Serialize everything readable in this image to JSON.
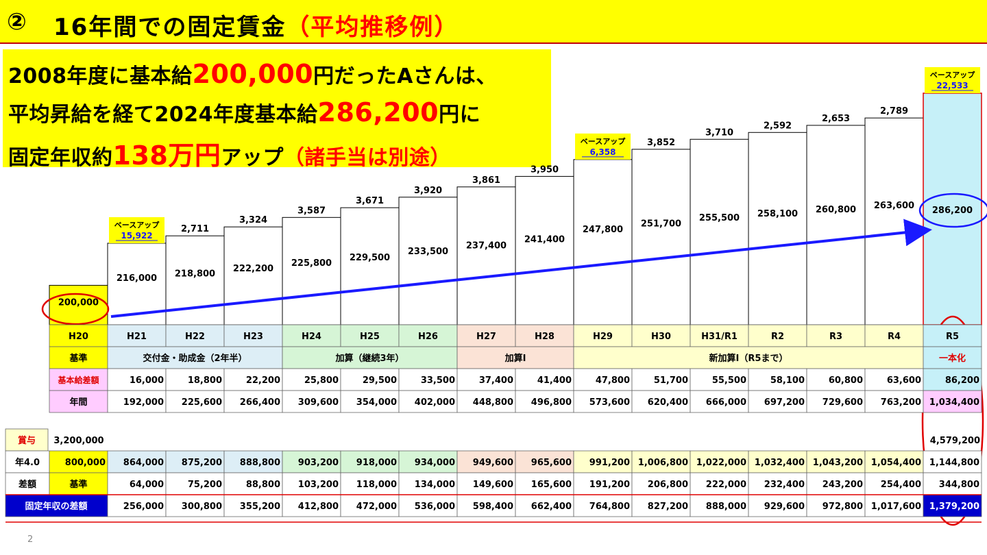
{
  "title": {
    "number": "②",
    "main": "16年間での固定賃金",
    "accent": "（平均推移例）"
  },
  "info": {
    "line1": {
      "a": "2008年度に基本給",
      "b": "200,000",
      "c": "円だったAさんは、"
    },
    "line2": {
      "a": "平均昇給を経て2024年度基本給",
      "b": "286,200",
      "c": "円に"
    },
    "line3": {
      "a": "固定年収約",
      "b": "138万円",
      "c": "アップ",
      "d": "（諸手当は別途）"
    }
  },
  "colors": {
    "title_bg": "#ffff00",
    "accent_red": "#ff0000",
    "arrow_blue": "#1a1aff",
    "highlight_dark_blue": "#0000cc",
    "period_colors": {
      "H20": "#ffff00",
      "H21-H23": "#ddeef6",
      "H24-H26": "#d6f5d6",
      "H27-H28": "#fbe3d6",
      "H29-R4": "#ffffcc",
      "R5": "#c6f0f8"
    }
  },
  "chart_data": {
    "type": "bar",
    "categories": [
      "H20",
      "H21",
      "H22",
      "H23",
      "H24",
      "H25",
      "H26",
      "H27",
      "H28",
      "H29",
      "H30",
      "H31/R1",
      "R2",
      "R3",
      "R4",
      "R5"
    ],
    "values": [
      200000,
      216000,
      218800,
      222200,
      225800,
      229500,
      233500,
      237400,
      241400,
      247800,
      251700,
      255500,
      258100,
      260800,
      263600,
      286200
    ],
    "value_labels": [
      "200,000",
      "216,000",
      "218,800",
      "222,200",
      "225,800",
      "229,500",
      "233,500",
      "237,400",
      "241,400",
      "247,800",
      "251,700",
      "255,500",
      "258,100",
      "260,800",
      "263,600",
      "286,200"
    ],
    "increments": [
      "",
      "",
      "2,711",
      "3,324",
      "3,587",
      "3,671",
      "3,920",
      "3,861",
      "3,950",
      "",
      "3,852",
      "3,710",
      "2,592",
      "2,653",
      "2,789",
      ""
    ],
    "base_up": [
      {
        "category": "H21",
        "label": "ベースアップ",
        "value": "15,922"
      },
      {
        "category": "H29",
        "label": "ベースアップ",
        "value": "6,358"
      },
      {
        "category": "R5",
        "label": "ベースアップ",
        "value": "22,533"
      }
    ],
    "arrow": {
      "from": "H20",
      "to": "R5"
    }
  },
  "table": {
    "years": [
      "H20",
      "H21",
      "H22",
      "H23",
      "H24",
      "H25",
      "H26",
      "H27",
      "H28",
      "H29",
      "H30",
      "H31/R1",
      "R2",
      "R3",
      "R4",
      "R5"
    ],
    "criteria": [
      {
        "label": "基準",
        "span": [
          0,
          0
        ]
      },
      {
        "label": "交付金・助成金（2年半）",
        "span": [
          1,
          3
        ]
      },
      {
        "label": "加算（継続3年）",
        "span": [
          4,
          6
        ]
      },
      {
        "label": "加算Ⅰ",
        "span": [
          7,
          8
        ]
      },
      {
        "label": "新加算Ⅰ（R5まで）",
        "span": [
          9,
          14
        ]
      },
      {
        "label": "一本化",
        "span": [
          15,
          15
        ]
      }
    ],
    "diff_label": "基本給差額",
    "diff": [
      "",
      "16,000",
      "18,800",
      "22,200",
      "25,800",
      "29,500",
      "33,500",
      "37,400",
      "41,400",
      "47,800",
      "51,700",
      "55,500",
      "58,100",
      "60,800",
      "63,600",
      "86,200"
    ],
    "annual_label": "年間",
    "annual": [
      "",
      "192,000",
      "225,600",
      "266,400",
      "309,600",
      "354,000",
      "402,000",
      "448,800",
      "496,800",
      "573,600",
      "620,400",
      "666,000",
      "697,200",
      "729,600",
      "763,200",
      "1,034,400"
    ]
  },
  "bonus": {
    "label": "賞与",
    "start": "3,200,000",
    "end": "4,579,200",
    "nen_label": "年4.0",
    "nen": [
      "800,000",
      "864,000",
      "875,200",
      "888,800",
      "903,200",
      "918,000",
      "934,000",
      "949,600",
      "965,600",
      "991,200",
      "1,006,800",
      "1,022,000",
      "1,032,400",
      "1,043,200",
      "1,054,400",
      "1,144,800"
    ],
    "sagaku_label": "差額",
    "sagaku": [
      "基準",
      "64,000",
      "75,200",
      "88,800",
      "103,200",
      "118,000",
      "134,000",
      "149,600",
      "165,600",
      "191,200",
      "206,800",
      "222,000",
      "232,400",
      "243,200",
      "254,400",
      "344,800"
    ],
    "fixed_label": "固定年収の差額",
    "fixed": [
      "",
      "256,000",
      "300,800",
      "355,200",
      "412,800",
      "472,000",
      "536,000",
      "598,400",
      "662,400",
      "764,800",
      "827,200",
      "888,000",
      "929,600",
      "972,800",
      "1,017,600",
      "1,379,200"
    ]
  },
  "page_number": "2"
}
